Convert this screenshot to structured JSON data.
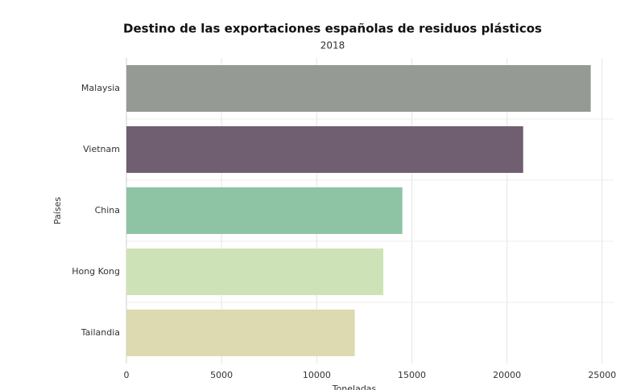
{
  "chart_data": {
    "type": "bar",
    "orientation": "horizontal",
    "title": "Destino de las exportaciones españolas de residuos plásticos",
    "subtitle": "2018",
    "x_label": "Toneladas",
    "y_label": "Países",
    "categories": [
      "Malaysia",
      "Vietnam",
      "China",
      "Hong Kong",
      "Tailandia"
    ],
    "values": [
      24400,
      20850,
      14500,
      13500,
      12000
    ],
    "colors": [
      "#959a95",
      "#6f5f70",
      "#8ec4a4",
      "#cde3b7",
      "#ddd9b1"
    ],
    "xlim": [
      0,
      25600
    ],
    "xticks": [
      0,
      5000,
      10000,
      15000,
      20000,
      25000
    ],
    "grid": true
  }
}
